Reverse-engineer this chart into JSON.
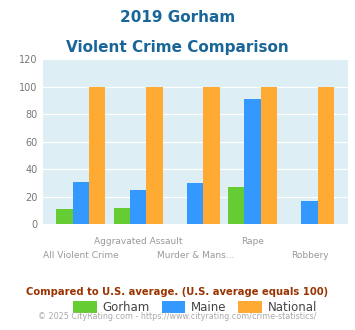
{
  "title_line1": "2019 Gorham",
  "title_line2": "Violent Crime Comparison",
  "gorham": [
    11,
    12,
    0,
    27,
    0
  ],
  "maine": [
    31,
    25,
    30,
    91,
    17
  ],
  "national": [
    100,
    100,
    100,
    100,
    100
  ],
  "color_gorham": "#66cc33",
  "color_maine": "#3399ff",
  "color_national": "#ffaa33",
  "bg_color": "#ddeef4",
  "ylim": [
    0,
    120
  ],
  "yticks": [
    0,
    20,
    40,
    60,
    80,
    100,
    120
  ],
  "title_color": "#1a6699",
  "top_labels": [
    "",
    "Aggravated Assault",
    "",
    "Rape",
    ""
  ],
  "bottom_labels": [
    "All Violent Crime",
    "",
    "Murder & Mans...",
    "",
    "Robbery"
  ],
  "footer1": "Compared to U.S. average. (U.S. average equals 100)",
  "footer2": "© 2025 CityRating.com - https://www.cityrating.com/crime-statistics/",
  "footer1_color": "#993300",
  "footer2_color": "#aaaaaa",
  "legend_labels": [
    "Gorham",
    "Maine",
    "National"
  ]
}
